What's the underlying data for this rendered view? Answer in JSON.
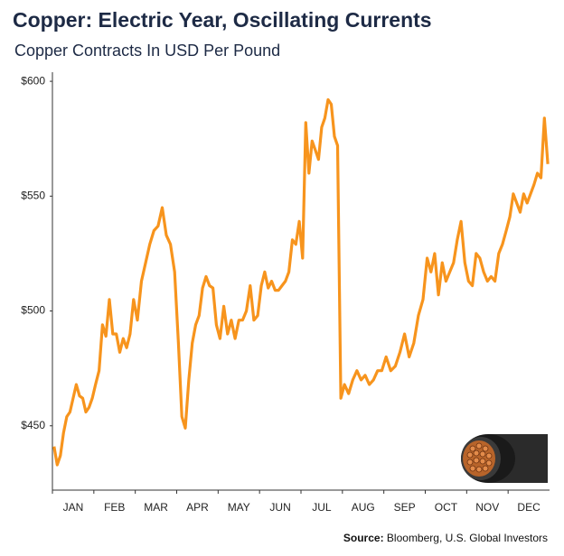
{
  "chart_data": {
    "type": "line",
    "title": "Copper: Electric Year, Oscillating Currents",
    "subtitle": "Copper Contracts In USD Per Pound",
    "source_label": "Source:",
    "source": "Bloomberg, U.S. Global Investors",
    "color": "#f7941d",
    "categories": [
      "JAN",
      "FEB",
      "MAR",
      "APR",
      "MAY",
      "JUN",
      "JUL",
      "AUG",
      "SEP",
      "OCT",
      "NOV",
      "DEC"
    ],
    "values": [
      [
        441,
        433,
        437,
        447,
        454,
        456,
        462,
        468,
        463,
        462,
        456,
        458,
        462
      ],
      [
        468,
        474,
        494,
        489,
        505,
        490,
        490,
        482,
        488,
        484,
        490,
        505
      ],
      [
        496,
        513,
        521,
        529,
        535,
        537,
        545,
        533,
        529,
        517
      ],
      [
        486,
        454,
        449,
        470,
        486,
        494,
        498,
        510,
        515,
        511,
        510,
        494
      ],
      [
        488,
        502,
        490,
        496,
        488,
        496,
        496,
        500,
        511,
        496,
        498
      ],
      [
        511,
        517,
        510,
        513,
        509,
        509,
        511,
        513,
        517,
        531,
        529,
        539
      ],
      [
        523,
        582,
        560,
        574,
        570,
        566,
        580,
        584,
        592,
        590,
        576,
        572,
        462
      ],
      [
        468,
        464,
        470,
        474,
        470,
        472,
        468,
        470,
        474,
        474
      ],
      [
        480,
        474,
        476,
        482,
        490,
        480,
        486,
        498,
        505
      ],
      [
        523,
        517,
        525,
        507,
        521,
        513,
        517,
        521,
        531,
        539,
        521
      ],
      [
        513,
        511,
        525,
        523,
        517,
        513,
        515,
        513,
        525,
        529,
        535
      ],
      [
        541,
        551,
        547,
        543,
        551,
        547,
        551,
        555,
        560,
        558,
        584,
        564
      ]
    ],
    "ylim": [
      422,
      602
    ],
    "yticks": [
      {
        "value": 450,
        "label": "$450"
      },
      {
        "value": 500,
        "label": "$500"
      },
      {
        "value": 550,
        "label": "$550"
      },
      {
        "value": 600,
        "label": "$600"
      }
    ]
  }
}
